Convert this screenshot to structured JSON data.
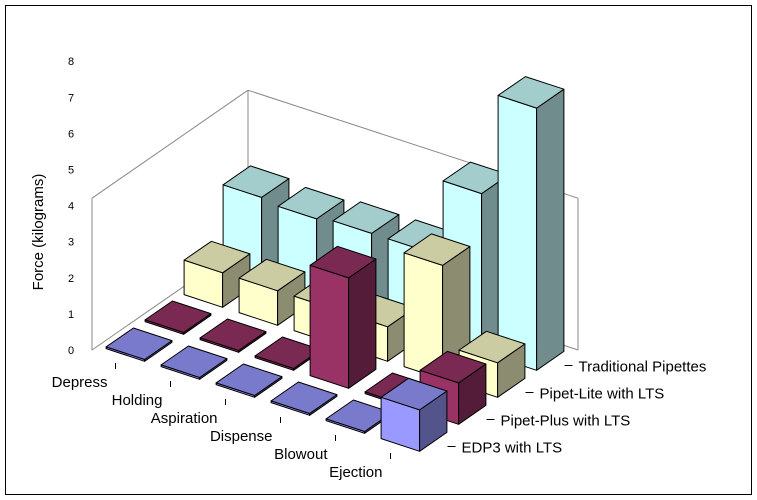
{
  "chart_data": {
    "type": "bar",
    "variant": "3d-column",
    "title": "",
    "ylabel": "Force (kilograms)",
    "ylim": [
      0,
      8
    ],
    "yticks": [
      "0",
      "1",
      "2",
      "3",
      "4",
      "5",
      "6",
      "7",
      "8"
    ],
    "grid": false,
    "categories": [
      "Depress",
      "Holding",
      "Aspiration",
      "Dispense",
      "Blowout",
      "Ejection"
    ],
    "series": [
      {
        "name": "EDP3 with LTS",
        "color": "#9999ff",
        "values": [
          0.05,
          0.05,
          0.05,
          0.05,
          0.05,
          1.2
        ]
      },
      {
        "name": "Pipet-Plus with LTS",
        "color": "#993366",
        "values": [
          0.05,
          0.05,
          0.05,
          3.2,
          0.05,
          1.2
        ]
      },
      {
        "name": "Pipet-Lite with LTS",
        "color": "#ffffcc",
        "values": [
          1.0,
          1.0,
          1.0,
          1.0,
          3.3,
          1.0
        ]
      },
      {
        "name": "Traditional Pipettes",
        "color": "#ccffff",
        "values": [
          2.4,
          2.3,
          2.4,
          2.4,
          4.6,
          7.6
        ]
      }
    ]
  }
}
